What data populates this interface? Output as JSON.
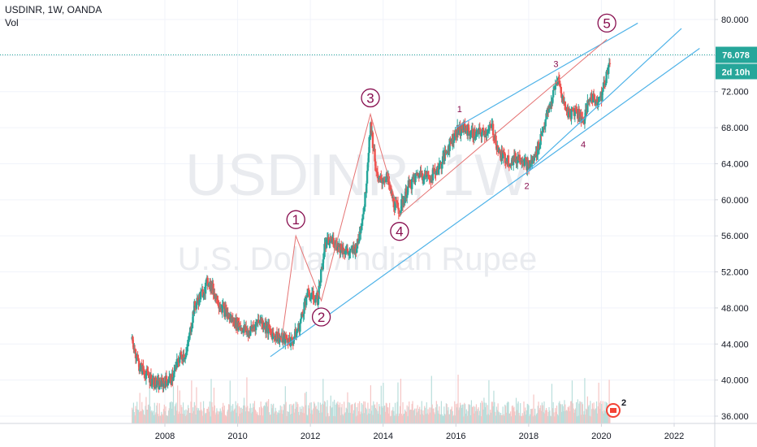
{
  "header": {
    "symbol_line": "USDINR, 1W, OANDA",
    "volume_label": "Vol"
  },
  "watermark": {
    "ticker": "USDINR, 1W",
    "name": "U.S. Dollar/Indian Rupee"
  },
  "price_tag": {
    "price": "76.078",
    "countdown": "2d 10h"
  },
  "badge": {
    "count": "2"
  },
  "colors": {
    "up": "#26a69a",
    "down": "#ef5350",
    "channel": "#4fb3e8",
    "wave": "#880e4f",
    "wave_line": "#e57373",
    "price_line": "#26a69a"
  },
  "chart_data": {
    "type": "candlestick",
    "title": "USDINR, 1W, OANDA",
    "xlabel": "",
    "ylabel": "",
    "x_ticks": [
      "2008",
      "2010",
      "2012",
      "2014",
      "2016",
      "2018",
      "2020",
      "2022"
    ],
    "y_ticks": [
      "36.000",
      "40.000",
      "44.000",
      "48.000",
      "52.000",
      "56.000",
      "60.000",
      "64.000",
      "68.000",
      "72.000",
      "76.000",
      "80.000"
    ],
    "ylim": [
      35,
      82
    ],
    "xlim": [
      2007.0,
      2023.0
    ],
    "grid": true,
    "last_price": 76.078,
    "price_path": [
      [
        2007.1,
        44.5
      ],
      [
        2007.3,
        41.5
      ],
      [
        2007.5,
        40.6
      ],
      [
        2007.8,
        39.4
      ],
      [
        2008.0,
        39.8
      ],
      [
        2008.2,
        40.2
      ],
      [
        2008.4,
        42.5
      ],
      [
        2008.6,
        43.0
      ],
      [
        2008.8,
        48.0
      ],
      [
        2009.0,
        49.5
      ],
      [
        2009.2,
        51.0
      ],
      [
        2009.5,
        48.5
      ],
      [
        2009.8,
        46.8
      ],
      [
        2010.0,
        46.2
      ],
      [
        2010.3,
        45.2
      ],
      [
        2010.6,
        46.8
      ],
      [
        2010.9,
        45.3
      ],
      [
        2011.2,
        44.6
      ],
      [
        2011.5,
        44.3
      ],
      [
        2011.7,
        46.0
      ],
      [
        2011.9,
        49.5
      ],
      [
        2012.2,
        49.0
      ],
      [
        2012.4,
        55.0
      ],
      [
        2012.6,
        55.5
      ],
      [
        2012.9,
        54.5
      ],
      [
        2013.1,
        54.0
      ],
      [
        2013.3,
        55.0
      ],
      [
        2013.5,
        60.0
      ],
      [
        2013.65,
        68.5
      ],
      [
        2013.85,
        62.0
      ],
      [
        2014.1,
        62.5
      ],
      [
        2014.3,
        59.5
      ],
      [
        2014.45,
        58.8
      ],
      [
        2014.7,
        61.5
      ],
      [
        2015.0,
        63.0
      ],
      [
        2015.3,
        62.5
      ],
      [
        2015.6,
        64.0
      ],
      [
        2015.8,
        66.0
      ],
      [
        2016.0,
        67.5
      ],
      [
        2016.2,
        68.0
      ],
      [
        2016.5,
        67.2
      ],
      [
        2016.8,
        67.5
      ],
      [
        2017.0,
        68.0
      ],
      [
        2017.2,
        65.0
      ],
      [
        2017.5,
        64.3
      ],
      [
        2017.8,
        64.8
      ],
      [
        2018.0,
        63.6
      ],
      [
        2018.2,
        65.0
      ],
      [
        2018.4,
        68.0
      ],
      [
        2018.6,
        70.5
      ],
      [
        2018.8,
        73.5
      ],
      [
        2018.95,
        71.0
      ],
      [
        2019.1,
        69.5
      ],
      [
        2019.3,
        70.0
      ],
      [
        2019.5,
        68.8
      ],
      [
        2019.7,
        71.5
      ],
      [
        2019.85,
        71.0
      ],
      [
        2020.0,
        71.5
      ],
      [
        2020.15,
        74.0
      ],
      [
        2020.25,
        76.08
      ]
    ],
    "volume_level_pct": 22,
    "wave_labels": [
      {
        "text": "1",
        "x": 2011.6,
        "y": 56.0,
        "circled": true
      },
      {
        "text": "2",
        "x": 2012.3,
        "y": 48.8,
        "circled": true
      },
      {
        "text": "3",
        "x": 2013.65,
        "y": 69.5,
        "circled": true
      },
      {
        "text": "4",
        "x": 2014.45,
        "y": 58.3,
        "circled": true
      },
      {
        "text": "5",
        "x": 2020.15,
        "y": 77.8,
        "circled": true
      },
      {
        "text": "1",
        "x": 2016.1,
        "y": 69.0,
        "circled": false
      },
      {
        "text": "2",
        "x": 2017.95,
        "y": 63.2,
        "circled": false
      },
      {
        "text": "3",
        "x": 2018.75,
        "y": 74.0,
        "circled": false
      },
      {
        "text": "4",
        "x": 2019.5,
        "y": 67.8,
        "circled": false
      }
    ],
    "wave_path": [
      [
        2011.2,
        44.2
      ],
      [
        2011.6,
        56.0
      ],
      [
        2012.3,
        48.8
      ],
      [
        2013.65,
        69.5
      ],
      [
        2014.45,
        58.3
      ],
      [
        2020.15,
        77.8
      ]
    ],
    "channels": [
      {
        "from": [
          2010.9,
          42.6
        ],
        "to": [
          2022.7,
          76.8
        ]
      },
      {
        "from": [
          2016.0,
          68.0
        ],
        "to": [
          2021.0,
          79.6
        ]
      },
      {
        "from": [
          2018.0,
          63.3
        ],
        "to": [
          2022.2,
          79.0
        ]
      }
    ]
  }
}
